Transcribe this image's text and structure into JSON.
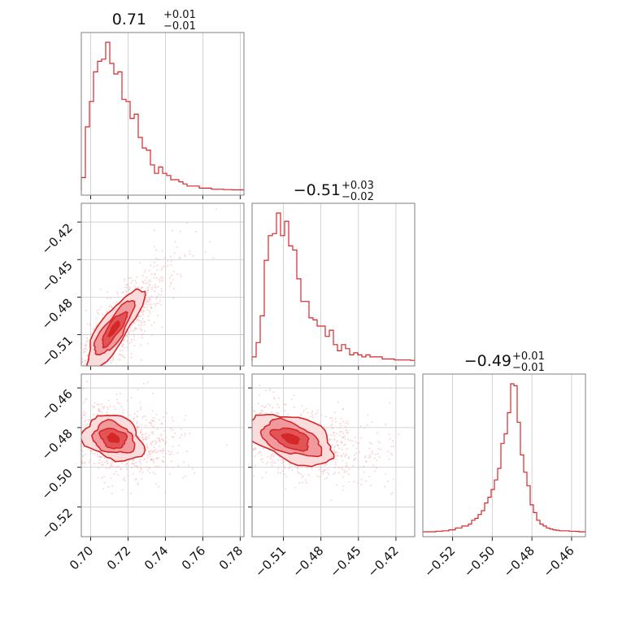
{
  "chart_data": {
    "type": "corner",
    "color": "#d62728",
    "parameters": [
      {
        "title": "0.71",
        "plus": "+0.01",
        "minus": "−0.01",
        "range": [
          0.695,
          0.782
        ],
        "ticks": [
          0.7,
          0.72,
          0.74,
          0.76,
          0.78
        ],
        "tick_labels": [
          "0.70",
          "0.72",
          "0.74",
          "0.76",
          "0.78"
        ]
      },
      {
        "title": "−0.51",
        "plus": "+0.03",
        "minus": "−0.02",
        "range": [
          -0.535,
          -0.405
        ],
        "ticks": [
          -0.51,
          -0.48,
          -0.45,
          -0.42
        ],
        "tick_labels": [
          "−0.51",
          "−0.48",
          "−0.45",
          "−0.42"
        ]
      },
      {
        "title": "−0.49",
        "plus": "+0.01",
        "minus": "−0.01",
        "range": [
          -0.535,
          -0.453
        ],
        "ticks": [
          -0.52,
          -0.5,
          -0.48,
          -0.46
        ],
        "tick_labels": [
          "−0.52",
          "−0.50",
          "−0.48",
          "−0.46"
        ]
      }
    ],
    "grid": true,
    "marginals": [
      {
        "param": 0,
        "bin_edges": [
          0.695,
          0.782
        ],
        "counts": [
          6,
          30,
          42,
          56,
          61,
          62,
          70,
          60,
          55,
          56,
          43,
          42,
          34,
          36,
          25,
          20,
          19,
          12,
          8,
          11,
          8,
          7,
          5,
          5,
          4,
          3,
          2,
          2,
          2,
          1,
          1,
          1,
          0.5,
          0.5,
          0.5,
          0.3,
          0.3,
          0.2,
          0.2,
          0.2
        ]
      },
      {
        "param": 1,
        "bin_edges": [
          -0.535,
          -0.405
        ],
        "counts": [
          2,
          9,
          22,
          49,
          61,
          62,
          72,
          61,
          68,
          56,
          54,
          40,
          29,
          29,
          21,
          20,
          17,
          17,
          12,
          15,
          8,
          5,
          8,
          6,
          3,
          4,
          3,
          2,
          3,
          2,
          2,
          2,
          1,
          1,
          1,
          0.5,
          0.5,
          0.5,
          0.5,
          0.3
        ]
      },
      {
        "param": 2,
        "bin_edges": [
          -0.535,
          -0.453
        ],
        "counts": [
          0,
          0,
          0,
          0,
          0.3,
          0.3,
          0.5,
          0.5,
          1,
          1,
          2,
          2,
          3,
          3,
          4,
          6,
          7,
          9,
          11,
          15,
          18,
          22,
          27,
          33,
          46,
          51,
          62,
          77,
          76,
          57,
          40,
          31,
          24,
          14,
          10,
          6,
          4,
          3,
          2,
          1.5,
          1,
          0.8,
          0.5,
          0.5,
          0.5,
          0.3,
          0.3,
          0.2,
          0,
          0
        ]
      }
    ],
    "joint": [
      {
        "x_param": 0,
        "y_param": 1,
        "correlation": 0.88,
        "contour_levels": 4
      },
      {
        "x_param": 0,
        "y_param": 2,
        "correlation": -0.3,
        "contour_levels": 4
      },
      {
        "x_param": 1,
        "y_param": 2,
        "correlation": -0.45,
        "contour_levels": 4
      }
    ]
  }
}
